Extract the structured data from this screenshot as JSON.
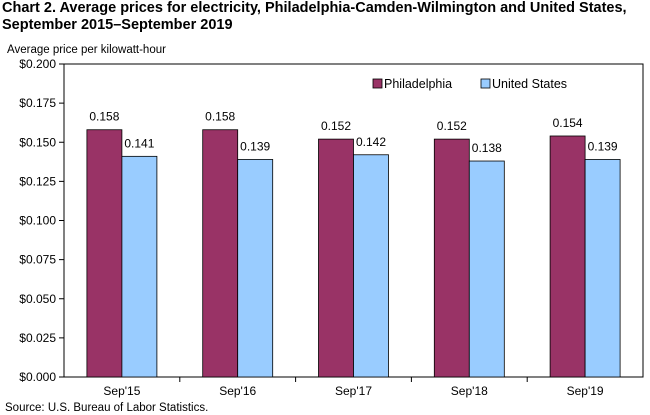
{
  "title_line1": "Chart 2. Average prices for electricity, Philadelphia-Camden-Wilmington and United States,",
  "title_line2": "September 2015–September 2019",
  "source": "Source: U.S. Bureau of Labor Statistics.",
  "chart_data": {
    "type": "bar",
    "title": "Average prices for electricity, Philadelphia-Camden-Wilmington and United States, September 2015–September 2019",
    "ylabel": "Average price per kilowatt-hour",
    "xlabel": "",
    "categories": [
      "Sep'15",
      "Sep'16",
      "Sep'17",
      "Sep'18",
      "Sep'19"
    ],
    "series": [
      {
        "name": "Philadelphia",
        "color": "#993366",
        "values": [
          0.158,
          0.158,
          0.152,
          0.152,
          0.154
        ]
      },
      {
        "name": "United States",
        "color": "#99ccff",
        "values": [
          0.141,
          0.139,
          0.142,
          0.138,
          0.139
        ]
      }
    ],
    "ylim": [
      0,
      0.2
    ],
    "yticks": [
      "$0.000",
      "$0.025",
      "$0.050",
      "$0.075",
      "$0.100",
      "$0.125",
      "$0.150",
      "$0.175",
      "$0.200"
    ],
    "ytick_values": [
      0,
      0.025,
      0.05,
      0.075,
      0.1,
      0.125,
      0.15,
      0.175,
      0.2
    ],
    "grid": false,
    "legend_position": "top-right"
  }
}
